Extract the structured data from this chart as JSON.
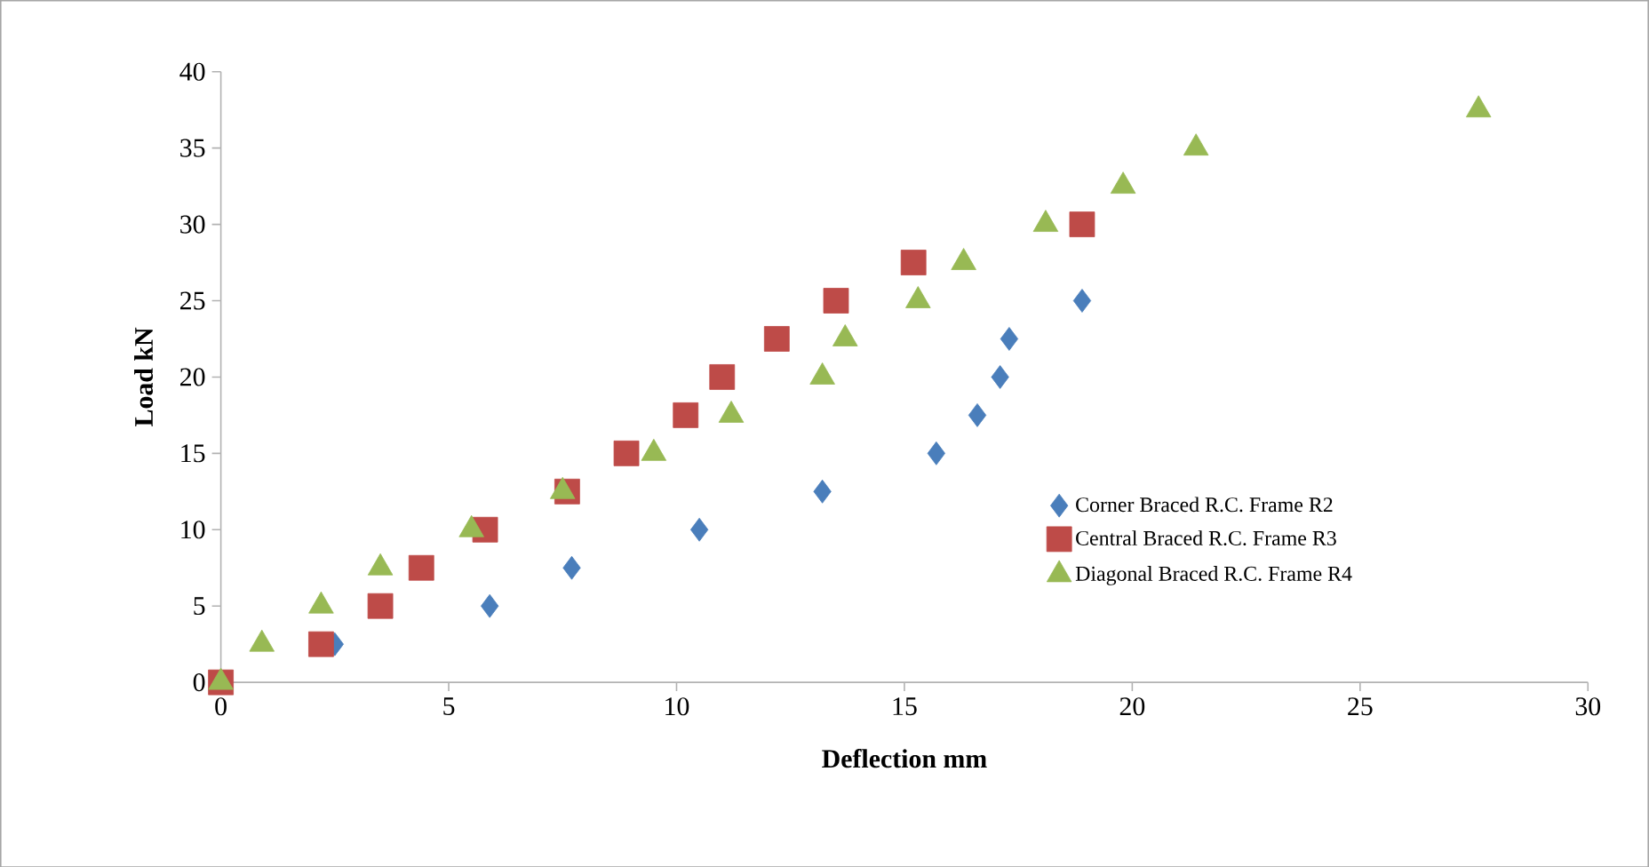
{
  "chart_data": {
    "type": "scatter",
    "xlabel": "Deflection mm",
    "ylabel": "Load kN",
    "xlim": [
      0,
      30
    ],
    "ylim": [
      0,
      40
    ],
    "xticks": [
      0,
      5,
      10,
      15,
      20,
      25,
      30
    ],
    "yticks": [
      0,
      5,
      10,
      15,
      20,
      25,
      30,
      35,
      40
    ],
    "grid": false,
    "legend": "right",
    "series": [
      {
        "name": "Corner Braced R.C. Frame R2",
        "color": "#4a7ebb",
        "marker": "diamond",
        "x": [
          2.5,
          5.9,
          7.7,
          10.5,
          13.2,
          15.7,
          16.6,
          17.1,
          17.3,
          18.9
        ],
        "values": [
          2.5,
          5,
          7.5,
          10,
          12.5,
          15,
          17.5,
          20,
          22.5,
          25
        ]
      },
      {
        "name": "Central Braced R.C. Frame R3",
        "color": "#be4b48",
        "marker": "square",
        "x": [
          0,
          2.2,
          3.5,
          4.4,
          5.8,
          7.6,
          8.9,
          10.2,
          11.0,
          12.2,
          13.5,
          15.2,
          18.9
        ],
        "values": [
          0,
          2.5,
          5,
          7.5,
          10,
          12.5,
          15,
          17.5,
          20,
          22.5,
          25,
          27.5,
          30
        ]
      },
      {
        "name": "Diagonal Braced R.C. Frame R4",
        "color": "#98b954",
        "marker": "triangle",
        "x": [
          0,
          0.9,
          2.2,
          3.5,
          5.5,
          7.5,
          9.5,
          11.2,
          13.2,
          13.7,
          15.3,
          16.3,
          18.1,
          19.8,
          21.4,
          27.6
        ],
        "values": [
          0,
          2.5,
          5,
          7.5,
          10,
          12.5,
          15,
          17.5,
          20,
          22.5,
          25,
          27.5,
          30,
          32.5,
          35,
          37.5
        ]
      }
    ]
  }
}
